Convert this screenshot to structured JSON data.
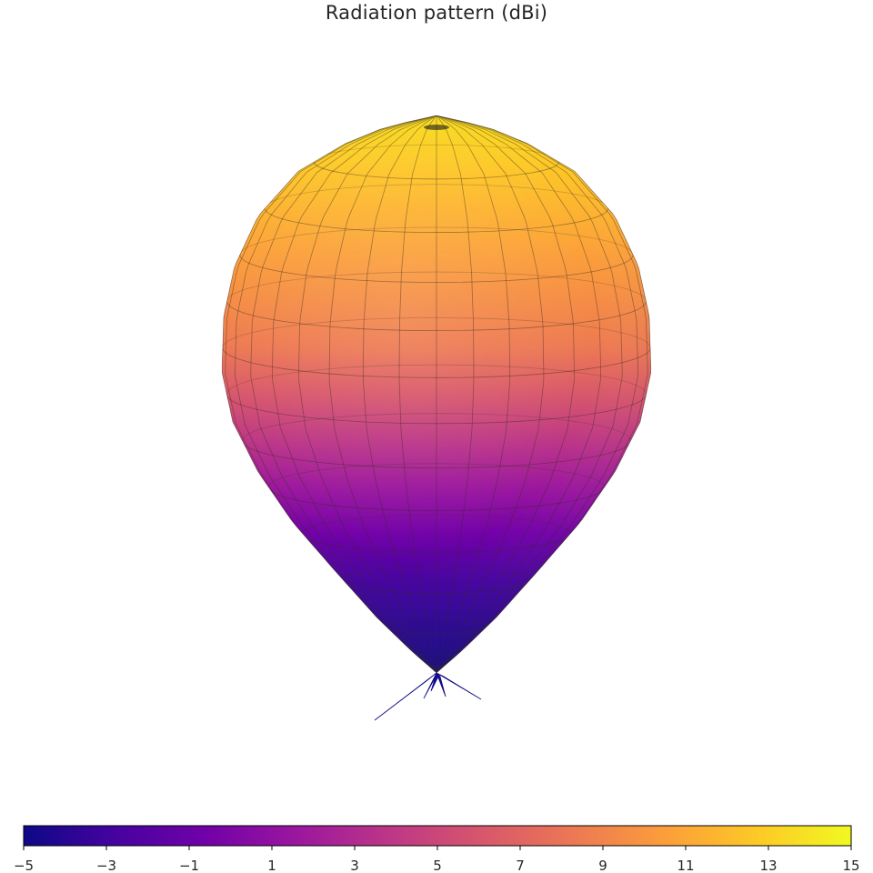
{
  "chart_data": {
    "type": "surface-3d",
    "title": "Radiation pattern (dBi)",
    "colormap": "plasma",
    "colorbar": {
      "orientation": "horizontal",
      "placement": "bottom",
      "min": -5,
      "max": 15,
      "ticks": [
        -5,
        -3,
        -1,
        1,
        3,
        5,
        7,
        9,
        11,
        13,
        15
      ],
      "tick_labels": [
        "−5",
        "−3",
        "−1",
        "1",
        "3",
        "5",
        "7",
        "9",
        "11",
        "13",
        "15"
      ]
    },
    "pattern": {
      "max_gain_dbi": 15,
      "min_gain_dbi": -5,
      "main_lobe": "up",
      "back_lobes": "small spikes at bottom"
    },
    "axes_visible": false,
    "grid": false
  }
}
